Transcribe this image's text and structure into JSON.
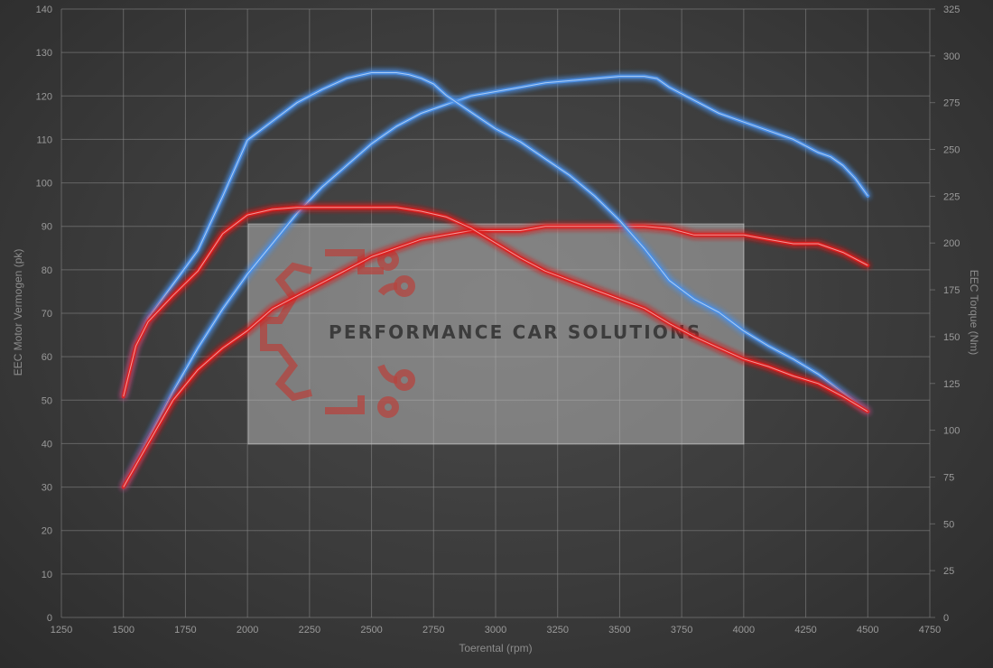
{
  "chart_data": {
    "type": "line",
    "xlabel": "Toerental (rpm)",
    "ylabel_left": "EEC Motor Vermogen (pk)",
    "ylabel_right": "EEC Torque (Nm)",
    "xlim": [
      1250,
      4750
    ],
    "ylim_left": [
      0,
      140
    ],
    "ylim_right": [
      0,
      325
    ],
    "x_ticks": [
      1250,
      1500,
      1750,
      2000,
      2250,
      2500,
      2750,
      3000,
      3250,
      3500,
      3750,
      4000,
      4250,
      4500,
      4750
    ],
    "y_ticks_left": [
      0,
      10,
      20,
      30,
      40,
      50,
      60,
      70,
      80,
      90,
      100,
      110,
      120,
      130,
      140
    ],
    "y_ticks_right": [
      0,
      25,
      50,
      75,
      100,
      125,
      150,
      175,
      200,
      225,
      250,
      275,
      300,
      325
    ],
    "grid": true,
    "watermark": "PERFORMANCE CAR SOLUTIONS",
    "series": [
      {
        "color": "#4a90e8",
        "axis": "left",
        "x": [
          1500,
          1600,
          1700,
          1800,
          1900,
          2000,
          2100,
          2200,
          2300,
          2400,
          2500,
          2600,
          2700,
          2800,
          2900,
          3000,
          3100,
          3200,
          3300,
          3400,
          3500,
          3600,
          3650,
          3700,
          3800,
          3900,
          4000,
          4100,
          4200,
          4300,
          4350,
          4400,
          4450,
          4500
        ],
        "y": [
          30,
          41,
          52,
          62,
          71,
          79,
          86,
          93,
          99,
          104,
          109,
          113,
          116,
          118,
          120,
          121,
          122,
          123,
          123.5,
          124,
          124.5,
          124.5,
          124,
          122,
          119,
          116,
          114,
          112,
          110,
          107,
          106,
          104,
          101,
          97
        ]
      },
      {
        "color": "#e02020",
        "axis": "left",
        "x": [
          1500,
          1600,
          1700,
          1800,
          1900,
          2000,
          2100,
          2200,
          2300,
          2400,
          2500,
          2600,
          2700,
          2800,
          2900,
          3000,
          3100,
          3200,
          3300,
          3400,
          3500,
          3600,
          3700,
          3800,
          3900,
          4000,
          4100,
          4200,
          4300,
          4400,
          4500
        ],
        "y": [
          30,
          40,
          50,
          57,
          62,
          66,
          71,
          74,
          77,
          80,
          83,
          85,
          87,
          88,
          89,
          89,
          89,
          90,
          90,
          90,
          90,
          90,
          89.5,
          88,
          88,
          88,
          87,
          86,
          86,
          84,
          81
        ]
      },
      {
        "color": "#4a90e8",
        "axis": "right",
        "x": [
          1500,
          1550,
          1600,
          1700,
          1800,
          1900,
          2000,
          2100,
          2200,
          2300,
          2400,
          2500,
          2550,
          2600,
          2650,
          2700,
          2750,
          2800,
          2900,
          3000,
          3100,
          3200,
          3300,
          3400,
          3500,
          3600,
          3700,
          3800,
          3900,
          4000,
          4100,
          4200,
          4300,
          4400,
          4500
        ],
        "y": [
          118,
          145,
          160,
          178,
          196,
          225,
          255,
          265,
          275,
          282,
          288,
          291,
          291,
          291,
          290,
          288,
          285,
          279,
          270,
          261,
          254,
          245,
          236,
          225,
          212,
          197,
          180,
          170,
          163,
          153,
          145,
          138,
          130,
          120,
          110
        ]
      },
      {
        "color": "#e02020",
        "axis": "right",
        "x": [
          1500,
          1550,
          1600,
          1700,
          1800,
          1900,
          2000,
          2100,
          2200,
          2300,
          2400,
          2500,
          2600,
          2700,
          2800,
          2900,
          3000,
          3100,
          3200,
          3300,
          3400,
          3500,
          3600,
          3700,
          3800,
          3900,
          4000,
          4100,
          4200,
          4300,
          4400,
          4500
        ],
        "y": [
          118,
          145,
          158,
          172,
          185,
          205,
          215,
          218,
          219,
          219,
          219,
          219,
          219,
          217,
          214,
          208,
          200,
          192,
          185,
          180,
          175,
          170,
          165,
          157,
          150,
          144,
          138,
          134,
          129,
          125,
          118,
          110
        ]
      }
    ]
  }
}
